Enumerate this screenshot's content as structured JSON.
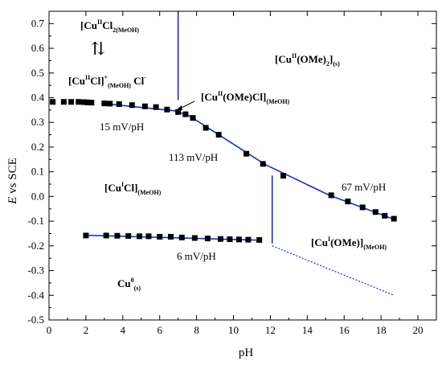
{
  "chart_data": {
    "type": "scatter",
    "xlabel": "pH",
    "ylabel_italic": "E",
    "ylabel_rest": " vs SCE",
    "xlim": [
      0,
      21
    ],
    "ylim": [
      -0.5,
      0.75
    ],
    "xticks": [
      0,
      2,
      4,
      6,
      8,
      10,
      12,
      14,
      16,
      18,
      20
    ],
    "yticks": [
      -0.5,
      -0.4,
      -0.3,
      -0.2,
      -0.1,
      0.0,
      0.1,
      0.2,
      0.3,
      0.4,
      0.5,
      0.6,
      0.7
    ],
    "ytick_labels": [
      "-0.5",
      "-0.4",
      "-0.3",
      "-0.2",
      "-0.1",
      "0.0",
      "0.1",
      "0.2",
      "0.3",
      "0.4",
      "0.5",
      "0.6",
      "0.7"
    ],
    "xtick_labels": [
      "0",
      "2",
      "4",
      "6",
      "8",
      "10",
      "12",
      "14",
      "16",
      "18",
      "20"
    ],
    "series": [
      {
        "points": [
          [
            0.2,
            0.383
          ],
          [
            0.8,
            0.383
          ],
          [
            1.2,
            0.383
          ],
          [
            1.6,
            0.383
          ],
          [
            1.9,
            0.382
          ],
          [
            2.1,
            0.381
          ],
          [
            2.3,
            0.38
          ],
          [
            3.0,
            0.377
          ],
          [
            3.3,
            0.376
          ],
          [
            3.8,
            0.374
          ],
          [
            4.5,
            0.37
          ],
          [
            5.2,
            0.365
          ],
          [
            5.8,
            0.362
          ],
          [
            6.4,
            0.352
          ],
          [
            7.0,
            0.342
          ],
          [
            7.4,
            0.333
          ],
          [
            7.8,
            0.318
          ],
          [
            8.5,
            0.278
          ],
          [
            9.2,
            0.25
          ],
          [
            10.7,
            0.173
          ],
          [
            11.6,
            0.132
          ],
          [
            12.7,
            0.084
          ],
          [
            15.3,
            0.005
          ],
          [
            16.2,
            -0.02
          ],
          [
            17.0,
            -0.044
          ],
          [
            17.7,
            -0.063
          ],
          [
            18.2,
            -0.078
          ],
          [
            18.7,
            -0.09
          ]
        ]
      },
      {
        "points": [
          [
            2.0,
            -0.158
          ],
          [
            3.1,
            -0.158
          ],
          [
            3.7,
            -0.159
          ],
          [
            4.3,
            -0.16
          ],
          [
            4.9,
            -0.161
          ],
          [
            5.4,
            -0.161
          ],
          [
            6.0,
            -0.163
          ],
          [
            6.6,
            -0.163
          ],
          [
            7.2,
            -0.166
          ],
          [
            7.9,
            -0.168
          ],
          [
            8.6,
            -0.17
          ],
          [
            9.3,
            -0.172
          ],
          [
            9.8,
            -0.173
          ],
          [
            10.3,
            -0.174
          ],
          [
            10.8,
            -0.175
          ],
          [
            11.4,
            -0.176
          ]
        ]
      }
    ],
    "fit_lines": [
      {
        "style": "solid",
        "points": [
          [
            3.0,
            0.376
          ],
          [
            6.8,
            0.347
          ],
          [
            7.6,
            0.327
          ],
          [
            11.7,
            0.13
          ],
          [
            15.2,
            0.005
          ],
          [
            18.7,
            -0.092
          ]
        ]
      },
      {
        "style": "solid",
        "points": [
          [
            2.0,
            -0.157
          ],
          [
            11.5,
            -0.177
          ]
        ]
      }
    ],
    "boundaries": [
      {
        "style": "solid",
        "points": [
          [
            7.0,
            0.75
          ],
          [
            7.0,
            0.39
          ]
        ]
      },
      {
        "style": "solid",
        "points": [
          [
            12.1,
            0.085
          ],
          [
            12.1,
            -0.19
          ]
        ]
      },
      {
        "style": "dotted",
        "points": [
          [
            12.1,
            -0.2
          ],
          [
            18.7,
            -0.4
          ]
        ]
      }
    ],
    "annotations": {
      "region_cu2cl2_main": "[Cu",
      "region_cu2cl2_sup": "II",
      "region_cu2cl2_mid": "Cl",
      "region_cu2cl2_sub": "2(MeOH)",
      "equilibrium_arrow": "⇅",
      "region_cu2cl_main": "[Cu",
      "region_cu2cl_sup": "II",
      "region_cu2cl_mid": "Cl]",
      "region_cu2cl_sup2": "+",
      "region_cu2cl_sub": "(MeOH)",
      "region_cu2cl_cl": " Cl",
      "region_cu2cl_clsup": "-",
      "region_cuome2_main": "[Cu",
      "region_cuome2_sup": "II",
      "region_cuome2_mid": "(OMe)",
      "region_cuome2_sub2": "2",
      "region_cuome2_end": "]",
      "region_cuome2_sub": "(s)",
      "region_cuomecl_main": "[Cu",
      "region_cuomecl_sup": "II",
      "region_cuomecl_mid": "(OMe)Cl]",
      "region_cuomecl_sub": "(MeOH)",
      "region_cuicl_main": "[Cu",
      "region_cuicl_sup": "I",
      "region_cuicl_mid": "Cl]",
      "region_cuicl_sub": "(MeOH)",
      "region_cuiome_main": "[Cu",
      "region_cuiome_sup": "I",
      "region_cuiome_mid": "(OMe)]",
      "region_cuiome_sub": "(MeOH)",
      "region_cu0_main": "Cu",
      "region_cu0_sup": "0",
      "region_cu0_sub": "(s)",
      "slope_15": "15 mV/pH",
      "slope_113": "113 mV/pH",
      "slope_67": "67 mV/pH",
      "slope_6": "6 mV/pH"
    },
    "colors": {
      "line": "#1a2dc8",
      "marker": "#000000",
      "axis": "#000000"
    },
    "grid": false,
    "legend": "none"
  }
}
